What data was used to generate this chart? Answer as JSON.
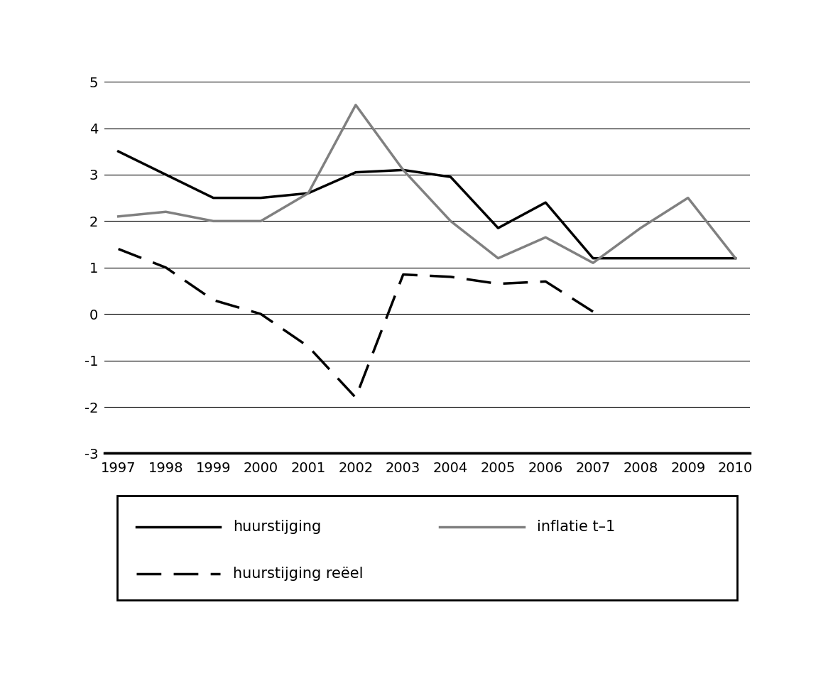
{
  "years": [
    1997,
    1998,
    1999,
    2000,
    2001,
    2002,
    2003,
    2004,
    2005,
    2006,
    2007,
    2008,
    2009,
    2010
  ],
  "huurstijging": [
    3.5,
    3.0,
    2.5,
    2.5,
    2.6,
    3.05,
    3.1,
    2.95,
    1.85,
    2.4,
    1.2,
    1.2,
    1.2,
    1.2
  ],
  "inflatie_t1": [
    2.1,
    2.2,
    2.0,
    2.0,
    2.6,
    4.5,
    3.1,
    2.0,
    1.2,
    1.65,
    1.1,
    1.85,
    2.5,
    1.2
  ],
  "reeel_years": [
    1997,
    1998,
    1999,
    2000,
    2001,
    2002,
    2003,
    2004,
    2005,
    2006,
    2007
  ],
  "reeel_vals": [
    1.4,
    1.0,
    0.3,
    0.0,
    -0.7,
    -1.8,
    0.85,
    0.8,
    0.65,
    0.7,
    0.05
  ],
  "ylim": [
    -3,
    5
  ],
  "yticks": [
    -3,
    -2,
    -1,
    0,
    1,
    2,
    3,
    4,
    5
  ],
  "huurstijging_color": "#000000",
  "inflatie_color": "#808080",
  "reeel_color": "#000000",
  "background_color": "#ffffff"
}
